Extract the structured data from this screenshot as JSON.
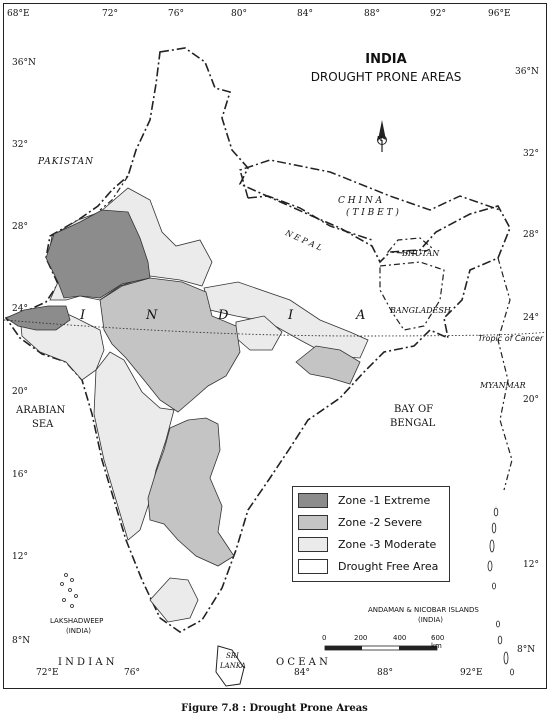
{
  "map": {
    "title": "INDIA",
    "subtitle": "DROUGHT PRONE AREAS",
    "lon_ticks_top": [
      "68°E",
      "72°",
      "76°",
      "80°",
      "84°",
      "88°",
      "92°",
      "96°E"
    ],
    "lon_ticks_bottom": [
      "72°E",
      "76°",
      "84°",
      "88°",
      "92°E"
    ],
    "lat_ticks_left": [
      "36°N",
      "32°",
      "28°",
      "24°",
      "20°",
      "16°",
      "12°",
      "8°N"
    ],
    "lat_ticks_right": [
      "36°N",
      "32°",
      "28°",
      "24°",
      "20°",
      "12°",
      "8°N"
    ],
    "labels": {
      "pakistan": "PAKISTAN",
      "china": "C H I N A",
      "tibet": "( T I B E T )",
      "nepal": "N E P A L",
      "bhutan": "BHUTAN",
      "bangladesh": "BANGLADESH",
      "myanmar": "MYANMAR",
      "tropic": "Tropic of Cancer",
      "india_i1": "I",
      "india_n": "N",
      "india_d": "D",
      "india_i2": "I",
      "india_a": "A",
      "arabian": "ARABIAN",
      "sea": "SEA",
      "bay": "BAY OF",
      "bengal": "BENGAL",
      "lakshadweep": "LAKSHADWEEP",
      "lakshadweep_india": "(INDIA)",
      "andaman": "ANDAMAN & NICOBAR ISLANDS",
      "andaman_india": "(INDIA)",
      "sri": "SRI",
      "lanka": "LANKA",
      "indian": "I N D I A N",
      "ocean": "O C E A N",
      "north_arrow": "N"
    },
    "legend": [
      {
        "label": "Zone -1 Extreme",
        "color": "#8c8c8c"
      },
      {
        "label": "Zone -2 Severe",
        "color": "#c4c4c4"
      },
      {
        "label": "Zone -3 Moderate",
        "color": "#ebebeb"
      },
      {
        "label": "Drought Free Area",
        "color": "#ffffff"
      }
    ],
    "scale_bar": {
      "ticks": [
        "0",
        "200",
        "400",
        "600 km"
      ]
    }
  },
  "caption": "Figure 7.8 : Drought Prone Areas"
}
